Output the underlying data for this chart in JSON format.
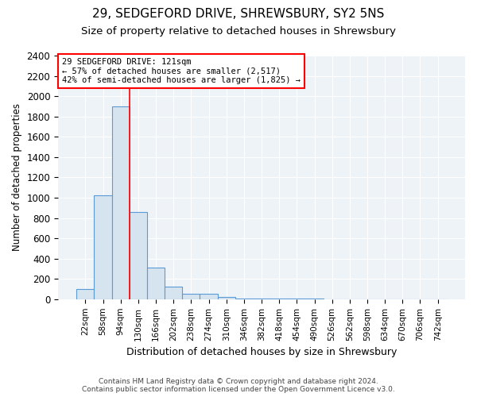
{
  "title1": "29, SEDGEFORD DRIVE, SHREWSBURY, SY2 5NS",
  "title2": "Size of property relative to detached houses in Shrewsbury",
  "xlabel": "Distribution of detached houses by size in Shrewsbury",
  "ylabel": "Number of detached properties",
  "categories": [
    "22sqm",
    "58sqm",
    "94sqm",
    "130sqm",
    "166sqm",
    "202sqm",
    "238sqm",
    "274sqm",
    "310sqm",
    "346sqm",
    "382sqm",
    "418sqm",
    "454sqm",
    "490sqm",
    "526sqm",
    "562sqm",
    "598sqm",
    "634sqm",
    "670sqm",
    "706sqm",
    "742sqm"
  ],
  "values": [
    100,
    1020,
    1900,
    860,
    315,
    120,
    55,
    50,
    25,
    10,
    10,
    5,
    3,
    3,
    2,
    1,
    1,
    1,
    0,
    0,
    0
  ],
  "bar_color": "#d6e4f0",
  "bar_edge_color": "#5b9bd5",
  "vline_color": "red",
  "vline_x": 2.5,
  "annotation_text": "29 SEDGEFORD DRIVE: 121sqm\n← 57% of detached houses are smaller (2,517)\n42% of semi-detached houses are larger (1,825) →",
  "annotation_box_color": "white",
  "annotation_box_edge": "red",
  "ylim": [
    0,
    2400
  ],
  "yticks": [
    0,
    200,
    400,
    600,
    800,
    1000,
    1200,
    1400,
    1600,
    1800,
    2000,
    2200,
    2400
  ],
  "footer1": "Contains HM Land Registry data © Crown copyright and database right 2024.",
  "footer2": "Contains public sector information licensed under the Open Government Licence v3.0.",
  "bg_color": "#ffffff",
  "plot_bg_color": "#eef3f8",
  "grid_color": "#ffffff",
  "title1_fontsize": 11,
  "title2_fontsize": 9.5
}
